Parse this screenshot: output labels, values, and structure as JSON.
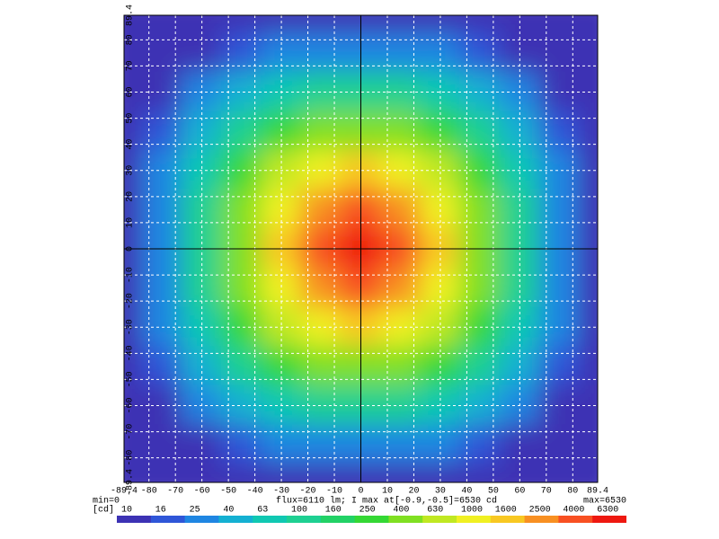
{
  "chart_data": {
    "type": "heatmap",
    "x": [
      -90,
      -75,
      -60,
      -45,
      -30,
      -15,
      0,
      15,
      30,
      45,
      60,
      75,
      90
    ],
    "y": [
      90,
      75,
      60,
      45,
      30,
      15,
      0,
      -15,
      -30,
      -45,
      -60,
      -75,
      -90
    ],
    "z": [
      [
        3,
        5,
        8,
        10,
        11,
        12,
        12,
        12,
        11,
        10,
        8,
        5,
        3
      ],
      [
        5,
        6,
        14,
        20,
        25,
        28,
        30,
        28,
        25,
        20,
        14,
        6,
        5
      ],
      [
        8,
        14,
        25,
        60,
        95,
        125,
        130,
        125,
        95,
        60,
        25,
        14,
        8
      ],
      [
        10,
        20,
        60,
        140,
        330,
        470,
        500,
        470,
        330,
        140,
        60,
        20,
        10
      ],
      [
        11,
        25,
        95,
        330,
        750,
        1400,
        1600,
        1400,
        750,
        330,
        95,
        25,
        11
      ],
      [
        12,
        28,
        125,
        470,
        1400,
        3300,
        4000,
        3300,
        1400,
        470,
        125,
        28,
        12
      ],
      [
        12,
        30,
        130,
        500,
        1600,
        4000,
        6530,
        4000,
        1600,
        500,
        130,
        30,
        12
      ],
      [
        12,
        28,
        125,
        470,
        1400,
        3300,
        4000,
        3300,
        1400,
        470,
        125,
        28,
        12
      ],
      [
        11,
        25,
        95,
        330,
        750,
        1400,
        1600,
        1400,
        750,
        330,
        95,
        25,
        11
      ],
      [
        10,
        20,
        60,
        140,
        330,
        470,
        500,
        470,
        330,
        140,
        60,
        20,
        10
      ],
      [
        8,
        14,
        25,
        60,
        95,
        125,
        130,
        125,
        95,
        60,
        25,
        14,
        8
      ],
      [
        5,
        6,
        14,
        20,
        25,
        28,
        30,
        28,
        25,
        20,
        14,
        6,
        5
      ],
      [
        3,
        5,
        8,
        10,
        11,
        12,
        12,
        12,
        11,
        10,
        8,
        5,
        3
      ]
    ],
    "xlim": [
      -89.4,
      89.4
    ],
    "ylim": [
      -89.4,
      89.4
    ],
    "xticks": [
      -89.4,
      -80,
      -70,
      -60,
      -50,
      -40,
      -30,
      -20,
      -10,
      0,
      10,
      20,
      30,
      40,
      50,
      60,
      70,
      80,
      89.4
    ],
    "yticks": [
      -89.4,
      -80,
      -70,
      -60,
      -50,
      -40,
      -30,
      -20,
      -10,
      0,
      10,
      20,
      30,
      40,
      50,
      60,
      70,
      80,
      89.4
    ],
    "grid": true,
    "min_label": "min=0",
    "info_label": "flux=6110 lm; I max at[-0.9,-0.5]=6530 cd",
    "max_label": "max=6530",
    "colorbar": {
      "unit": "[cd]",
      "ticks": [
        10,
        16,
        25,
        40,
        63,
        100,
        160,
        250,
        400,
        630,
        1000,
        1600,
        2500,
        4000,
        6300
      ],
      "colors": [
        "#3c32b4",
        "#2f56d8",
        "#1f86e2",
        "#14b0d2",
        "#10c8b2",
        "#1ed092",
        "#22d266",
        "#34d834",
        "#80e022",
        "#c0e822",
        "#f0f022",
        "#f8c822",
        "#f89022",
        "#f85022",
        "#ee1810"
      ]
    }
  }
}
